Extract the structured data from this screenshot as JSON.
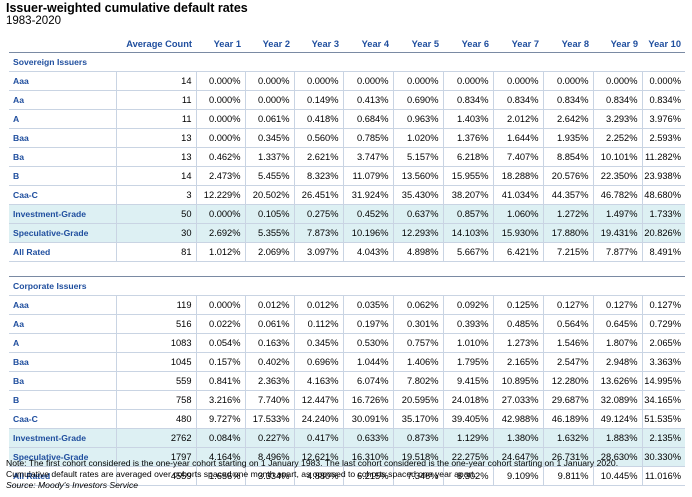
{
  "title": "Issuer-weighted cumulative default rates",
  "subtitle": "1983-2020",
  "columns": [
    "Average Count",
    "Year 1",
    "Year 2",
    "Year 3",
    "Year 4",
    "Year 5",
    "Year 6",
    "Year 7",
    "Year 8",
    "Year 9",
    "Year 10"
  ],
  "sovereign": {
    "label": "Sovereign Issuers",
    "rows": [
      {
        "name": "Aaa",
        "count": "14",
        "v": [
          "0.000%",
          "0.000%",
          "0.000%",
          "0.000%",
          "0.000%",
          "0.000%",
          "0.000%",
          "0.000%",
          "0.000%",
          "0.000%"
        ]
      },
      {
        "name": "Aa",
        "count": "11",
        "v": [
          "0.000%",
          "0.000%",
          "0.149%",
          "0.413%",
          "0.690%",
          "0.834%",
          "0.834%",
          "0.834%",
          "0.834%",
          "0.834%"
        ]
      },
      {
        "name": "A",
        "count": "11",
        "v": [
          "0.000%",
          "0.061%",
          "0.418%",
          "0.684%",
          "0.963%",
          "1.403%",
          "2.012%",
          "2.642%",
          "3.293%",
          "3.976%"
        ]
      },
      {
        "name": "Baa",
        "count": "13",
        "v": [
          "0.000%",
          "0.345%",
          "0.560%",
          "0.785%",
          "1.020%",
          "1.376%",
          "1.644%",
          "1.935%",
          "2.252%",
          "2.593%"
        ]
      },
      {
        "name": "Ba",
        "count": "13",
        "v": [
          "0.462%",
          "1.337%",
          "2.621%",
          "3.747%",
          "5.157%",
          "6.218%",
          "7.407%",
          "8.854%",
          "10.101%",
          "11.282%"
        ]
      },
      {
        "name": "B",
        "count": "14",
        "v": [
          "2.473%",
          "5.455%",
          "8.323%",
          "11.079%",
          "13.560%",
          "15.955%",
          "18.288%",
          "20.576%",
          "22.350%",
          "23.938%"
        ]
      },
      {
        "name": "Caa-C",
        "count": "3",
        "v": [
          "12.229%",
          "20.502%",
          "26.451%",
          "31.924%",
          "35.430%",
          "38.207%",
          "41.034%",
          "44.357%",
          "46.782%",
          "48.680%"
        ]
      },
      {
        "name": "Investment-Grade",
        "count": "50",
        "v": [
          "0.000%",
          "0.105%",
          "0.275%",
          "0.452%",
          "0.637%",
          "0.857%",
          "1.060%",
          "1.272%",
          "1.497%",
          "1.733%"
        ]
      },
      {
        "name": "Speculative-Grade",
        "count": "30",
        "v": [
          "2.692%",
          "5.355%",
          "7.873%",
          "10.196%",
          "12.293%",
          "14.103%",
          "15.930%",
          "17.880%",
          "19.431%",
          "20.826%"
        ]
      },
      {
        "name": "All Rated",
        "count": "81",
        "v": [
          "1.012%",
          "2.069%",
          "3.097%",
          "4.043%",
          "4.898%",
          "5.667%",
          "6.421%",
          "7.215%",
          "7.877%",
          "8.491%"
        ]
      }
    ]
  },
  "corporate": {
    "label": "Corporate Issuers",
    "rows": [
      {
        "name": "Aaa",
        "count": "119",
        "v": [
          "0.000%",
          "0.012%",
          "0.012%",
          "0.035%",
          "0.062%",
          "0.092%",
          "0.125%",
          "0.127%",
          "0.127%",
          "0.127%"
        ]
      },
      {
        "name": "Aa",
        "count": "516",
        "v": [
          "0.022%",
          "0.061%",
          "0.112%",
          "0.197%",
          "0.301%",
          "0.393%",
          "0.485%",
          "0.564%",
          "0.645%",
          "0.729%"
        ]
      },
      {
        "name": "A",
        "count": "1083",
        "v": [
          "0.054%",
          "0.163%",
          "0.345%",
          "0.530%",
          "0.757%",
          "1.010%",
          "1.273%",
          "1.546%",
          "1.807%",
          "2.065%"
        ]
      },
      {
        "name": "Baa",
        "count": "1045",
        "v": [
          "0.157%",
          "0.402%",
          "0.696%",
          "1.044%",
          "1.406%",
          "1.795%",
          "2.165%",
          "2.547%",
          "2.948%",
          "3.363%"
        ]
      },
      {
        "name": "Ba",
        "count": "559",
        "v": [
          "0.841%",
          "2.363%",
          "4.163%",
          "6.074%",
          "7.802%",
          "9.415%",
          "10.895%",
          "12.280%",
          "13.626%",
          "14.995%"
        ]
      },
      {
        "name": "B",
        "count": "758",
        "v": [
          "3.216%",
          "7.740%",
          "12.447%",
          "16.726%",
          "20.595%",
          "24.018%",
          "27.033%",
          "29.687%",
          "32.089%",
          "34.165%"
        ]
      },
      {
        "name": "Caa-C",
        "count": "480",
        "v": [
          "9.727%",
          "17.533%",
          "24.240%",
          "30.091%",
          "35.170%",
          "39.405%",
          "42.988%",
          "46.189%",
          "49.124%",
          "51.535%"
        ]
      },
      {
        "name": "Investment-Grade",
        "count": "2762",
        "v": [
          "0.084%",
          "0.227%",
          "0.417%",
          "0.633%",
          "0.873%",
          "1.129%",
          "1.380%",
          "1.632%",
          "1.883%",
          "2.135%"
        ]
      },
      {
        "name": "Speculative-Grade",
        "count": "1797",
        "v": [
          "4.164%",
          "8.496%",
          "12.621%",
          "16.310%",
          "19.518%",
          "22.275%",
          "24.647%",
          "26.731%",
          "28.630%",
          "30.330%"
        ]
      },
      {
        "name": "All Rated",
        "count": "4559",
        "v": [
          "1.656%",
          "3.334%",
          "4.880%",
          "6.215%",
          "7.346%",
          "8.302%",
          "9.109%",
          "9.811%",
          "10.445%",
          "11.016%"
        ]
      }
    ]
  },
  "notes": [
    "Note: The first cohort considered is the one-year cohort starting on 1 January 1983. The last cohort considered is the one-year cohort starting on 1 January 2020.",
    "Cumulative default rates are averaged over cohorts spaced one month apart, as opposed to cohorts spaced one year apart."
  ],
  "source": "Source: Moody's Investors Service",
  "colors": {
    "label_blue": "#1f4e9e",
    "highlight": "#ddf0f3",
    "grid": "#c9d4e3"
  }
}
